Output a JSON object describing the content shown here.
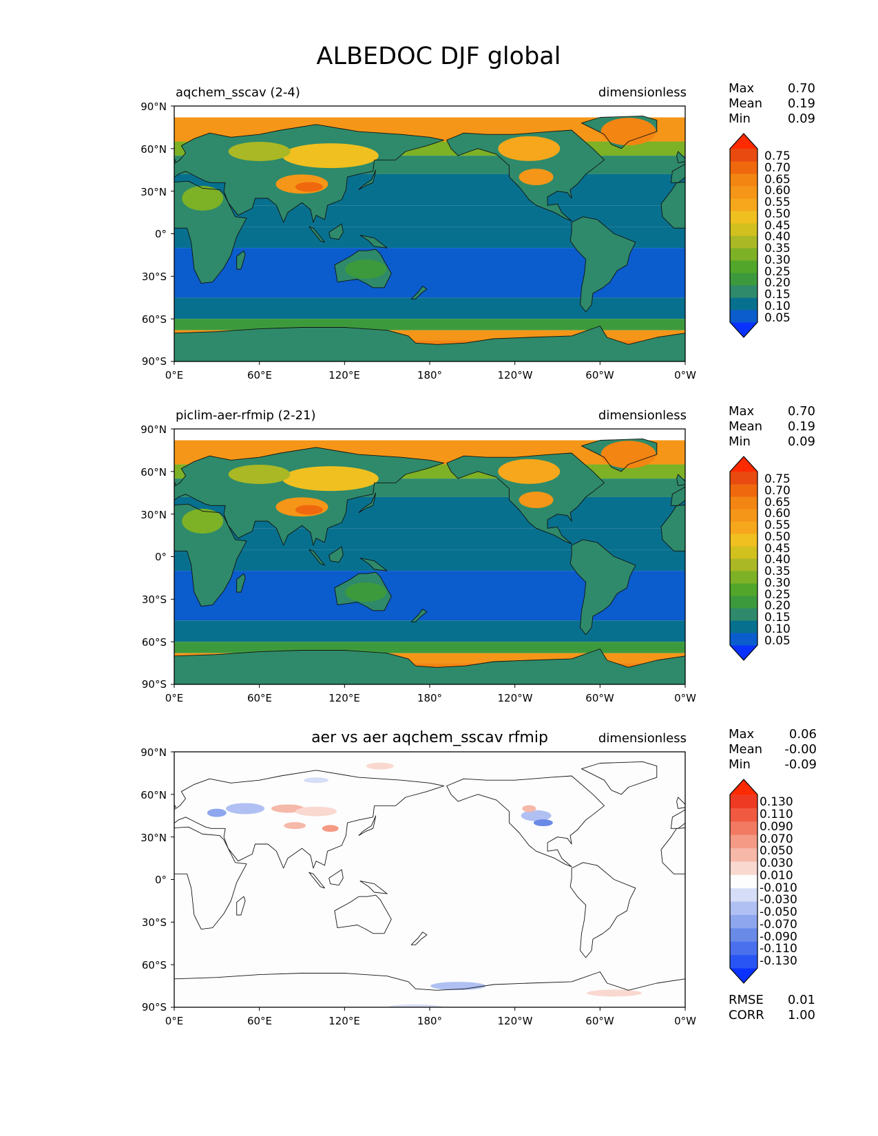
{
  "figure_title": "ALBEDOC DJF global",
  "chart_data": [
    {
      "type": "heatmap",
      "id": "p1",
      "title": "aqchem_sscav (2-4)",
      "units": "dimensionless",
      "stats": [
        {
          "label": "Max",
          "value": "0.70"
        },
        {
          "label": "Mean",
          "value": "0.19"
        },
        {
          "label": "Min",
          "value": "0.09"
        }
      ],
      "extra_stats": [],
      "x_ticks": [
        "0°E",
        "60°E",
        "120°E",
        "180°",
        "120°W",
        "60°W",
        "0°W"
      ],
      "y_ticks": [
        "90°N",
        "60°N",
        "30°N",
        "0°",
        "30°S",
        "60°S",
        "90°S"
      ],
      "xlim": [
        0,
        360
      ],
      "ylim": [
        -90,
        90
      ],
      "colorbar": {
        "levels": [
          0.05,
          0.1,
          0.15,
          0.2,
          0.25,
          0.3,
          0.35,
          0.4,
          0.45,
          0.5,
          0.55,
          0.6,
          0.65,
          0.7,
          0.75
        ],
        "labels": [
          "0.75",
          "0.70",
          "0.65",
          "0.60",
          "0.55",
          "0.50",
          "0.45",
          "0.40",
          "0.35",
          "0.30",
          "0.25",
          "0.20",
          "0.15",
          "0.10",
          "0.05"
        ],
        "colors": [
          "#0a32ff",
          "#0b5ccc",
          "#08708f",
          "#2e8a6a",
          "#3d9a3c",
          "#52a629",
          "#7db126",
          "#aab825",
          "#d2c01f",
          "#f0c020",
          "#f7a71c",
          "#f59618",
          "#f38512",
          "#f0680e",
          "#e84a10",
          "#ff2a00"
        ]
      },
      "field": "sequential"
    },
    {
      "type": "heatmap",
      "id": "p2",
      "title": "piclim-aer-rfmip (2-21)",
      "units": "dimensionless",
      "stats": [
        {
          "label": "Max",
          "value": "0.70"
        },
        {
          "label": "Mean",
          "value": "0.19"
        },
        {
          "label": "Min",
          "value": "0.09"
        }
      ],
      "extra_stats": [],
      "x_ticks": [
        "0°E",
        "60°E",
        "120°E",
        "180°",
        "120°W",
        "60°W",
        "0°W"
      ],
      "y_ticks": [
        "90°N",
        "60°N",
        "30°N",
        "0°",
        "30°S",
        "60°S",
        "90°S"
      ],
      "xlim": [
        0,
        360
      ],
      "ylim": [
        -90,
        90
      ],
      "colorbar": {
        "levels": [
          0.05,
          0.1,
          0.15,
          0.2,
          0.25,
          0.3,
          0.35,
          0.4,
          0.45,
          0.5,
          0.55,
          0.6,
          0.65,
          0.7,
          0.75
        ],
        "labels": [
          "0.75",
          "0.70",
          "0.65",
          "0.60",
          "0.55",
          "0.50",
          "0.45",
          "0.40",
          "0.35",
          "0.30",
          "0.25",
          "0.20",
          "0.15",
          "0.10",
          "0.05"
        ],
        "colors": [
          "#0a32ff",
          "#0b5ccc",
          "#08708f",
          "#2e8a6a",
          "#3d9a3c",
          "#52a629",
          "#7db126",
          "#aab825",
          "#d2c01f",
          "#f0c020",
          "#f7a71c",
          "#f59618",
          "#f38512",
          "#f0680e",
          "#e84a10",
          "#ff2a00"
        ]
      },
      "field": "sequential"
    },
    {
      "type": "heatmap",
      "id": "p3",
      "title": "aer vs aer aqchem_sscav rfmip",
      "units": "dimensionless",
      "stats": [
        {
          "label": "Max",
          "value": "0.06"
        },
        {
          "label": "Mean",
          "value": "-0.00"
        },
        {
          "label": "Min",
          "value": "-0.09"
        }
      ],
      "extra_stats": [
        {
          "label": "RMSE",
          "value": "0.01"
        },
        {
          "label": "CORR",
          "value": "1.00"
        }
      ],
      "x_ticks": [
        "0°E",
        "60°E",
        "120°E",
        "180°",
        "120°W",
        "60°W",
        "0°W"
      ],
      "y_ticks": [
        "90°N",
        "60°N",
        "30°N",
        "0°",
        "30°S",
        "60°S",
        "90°S"
      ],
      "xlim": [
        0,
        360
      ],
      "ylim": [
        -90,
        90
      ],
      "colorbar": {
        "levels": [
          -0.13,
          -0.11,
          -0.09,
          -0.07,
          -0.05,
          -0.03,
          -0.01,
          0.01,
          0.03,
          0.05,
          0.07,
          0.09,
          0.11,
          0.13
        ],
        "labels": [
          "0.130",
          "0.110",
          "0.090",
          "0.070",
          "0.050",
          "0.030",
          "0.010",
          "-0.010",
          "-0.030",
          "-0.050",
          "-0.070",
          "-0.090",
          "-0.110",
          "-0.130"
        ],
        "colors": [
          "#0a32ff",
          "#2a55f5",
          "#4a70ee",
          "#6a8ae8",
          "#8ea6ee",
          "#b0c0f2",
          "#d6ddf6",
          "#fdfdfd",
          "#f9d8d0",
          "#f6b8a8",
          "#f59a85",
          "#f27a62",
          "#f05a40",
          "#ee3a22",
          "#ff2a00"
        ]
      },
      "field": "diverging"
    }
  ]
}
